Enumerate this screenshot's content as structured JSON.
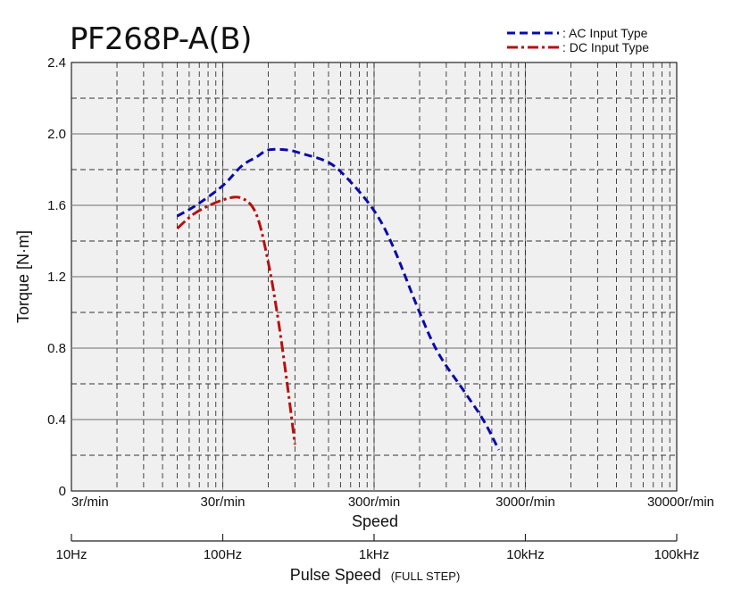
{
  "chart_data": {
    "type": "line",
    "title": "PF268P-A(B)",
    "xlabel": "Speed",
    "ylabel": "Torque [N·m]",
    "x_scale": "log",
    "x_range_rpm": [
      3,
      30000
    ],
    "ylim": [
      0,
      2.4
    ],
    "y_ticks": [
      "0",
      "0.4",
      "0.8",
      "1.2",
      "1.6",
      "2.0",
      "2.4"
    ],
    "y_tick_values": [
      0,
      0.4,
      0.8,
      1.2,
      1.6,
      2.0,
      2.4
    ],
    "x_ticks": [
      "3r/min",
      "30r/min",
      "300r/min",
      "3000r/min",
      "30000r/min"
    ],
    "x_tick_values": [
      3,
      30,
      300,
      3000,
      30000
    ],
    "secondary_axis": {
      "label": "Pulse Speed",
      "label_suffix": "(FULL STEP)",
      "ticks": [
        "10Hz",
        "100Hz",
        "1kHz",
        "10kHz",
        "100kHz"
      ]
    },
    "grid": true,
    "legend_position": "top-right",
    "series": [
      {
        "name": ": AC Input Type",
        "color": "#0a0aa8",
        "style": "dashed",
        "x": [
          15,
          20,
          30,
          40,
          50,
          60,
          80,
          100,
          150,
          200,
          300,
          400,
          600,
          800,
          1200,
          1600,
          2000
        ],
        "y": [
          1.54,
          1.6,
          1.71,
          1.82,
          1.87,
          1.91,
          1.91,
          1.89,
          1.84,
          1.75,
          1.57,
          1.37,
          1.0,
          0.77,
          0.55,
          0.39,
          0.23
        ]
      },
      {
        "name": ": DC Input Type",
        "color": "#b80f0f",
        "style": "dash-dot",
        "x": [
          15,
          20,
          30,
          40,
          50,
          60,
          70,
          80,
          90
        ],
        "y": [
          1.47,
          1.56,
          1.63,
          1.64,
          1.55,
          1.28,
          0.95,
          0.6,
          0.26
        ]
      }
    ]
  }
}
